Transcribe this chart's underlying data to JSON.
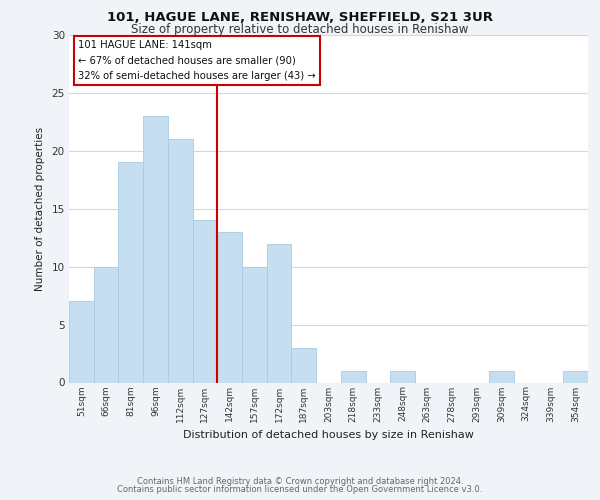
{
  "title": "101, HAGUE LANE, RENISHAW, SHEFFIELD, S21 3UR",
  "subtitle": "Size of property relative to detached houses in Renishaw",
  "xlabel": "Distribution of detached houses by size in Renishaw",
  "ylabel": "Number of detached properties",
  "bar_labels": [
    "51sqm",
    "66sqm",
    "81sqm",
    "96sqm",
    "112sqm",
    "127sqm",
    "142sqm",
    "157sqm",
    "172sqm",
    "187sqm",
    "203sqm",
    "218sqm",
    "233sqm",
    "248sqm",
    "263sqm",
    "278sqm",
    "293sqm",
    "309sqm",
    "324sqm",
    "339sqm",
    "354sqm"
  ],
  "bar_values": [
    7,
    10,
    19,
    23,
    21,
    14,
    13,
    10,
    12,
    3,
    0,
    1,
    0,
    1,
    0,
    0,
    0,
    1,
    0,
    0,
    1
  ],
  "bar_color": "#c5dff0",
  "bar_edge_color": "#a8cce0",
  "vline_color": "#cc0000",
  "vline_x_idx": 6,
  "ylim": [
    0,
    30
  ],
  "yticks": [
    0,
    5,
    10,
    15,
    20,
    25,
    30
  ],
  "annotation_title": "101 HAGUE LANE: 141sqm",
  "annotation_line1": "← 67% of detached houses are smaller (90)",
  "annotation_line2": "32% of semi-detached houses are larger (43) →",
  "footer_line1": "Contains HM Land Registry data © Crown copyright and database right 2024.",
  "footer_line2": "Contains public sector information licensed under the Open Government Licence v3.0.",
  "bg_color": "#f0f4f8",
  "plot_bg_color": "#ffffff",
  "grid_color": "#ccd9e8"
}
